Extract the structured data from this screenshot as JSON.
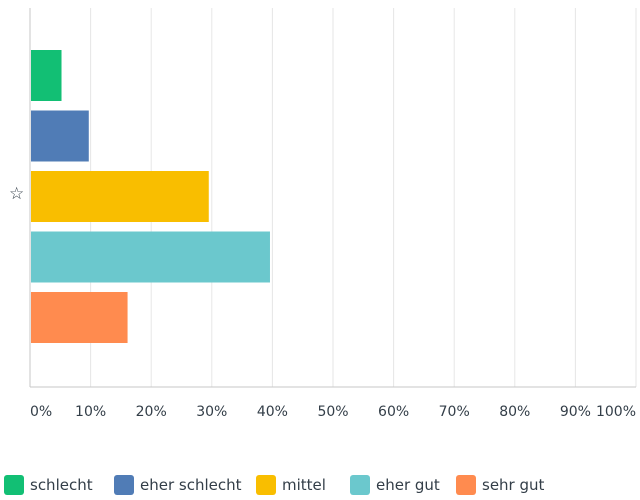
{
  "chart_data": {
    "type": "bar",
    "orientation": "horizontal",
    "categories": [
      "schlecht",
      "eher schlecht",
      "mittel",
      "eher gut",
      "sehr gut"
    ],
    "values": [
      5.2,
      9.7,
      29.5,
      39.6,
      16.1
    ],
    "colors": [
      "#12bf74",
      "#507cb6",
      "#f9be00",
      "#6bc8cd",
      "#ff8b4f"
    ],
    "xlim": [
      0,
      100
    ],
    "x_ticks": [
      "0%",
      "10%",
      "20%",
      "30%",
      "40%",
      "50%",
      "60%",
      "70%",
      "80%",
      "90%",
      "100%"
    ],
    "grid": true,
    "legend_position": "bottom",
    "highlighted_category": "mittel"
  },
  "star_icon": "☆"
}
